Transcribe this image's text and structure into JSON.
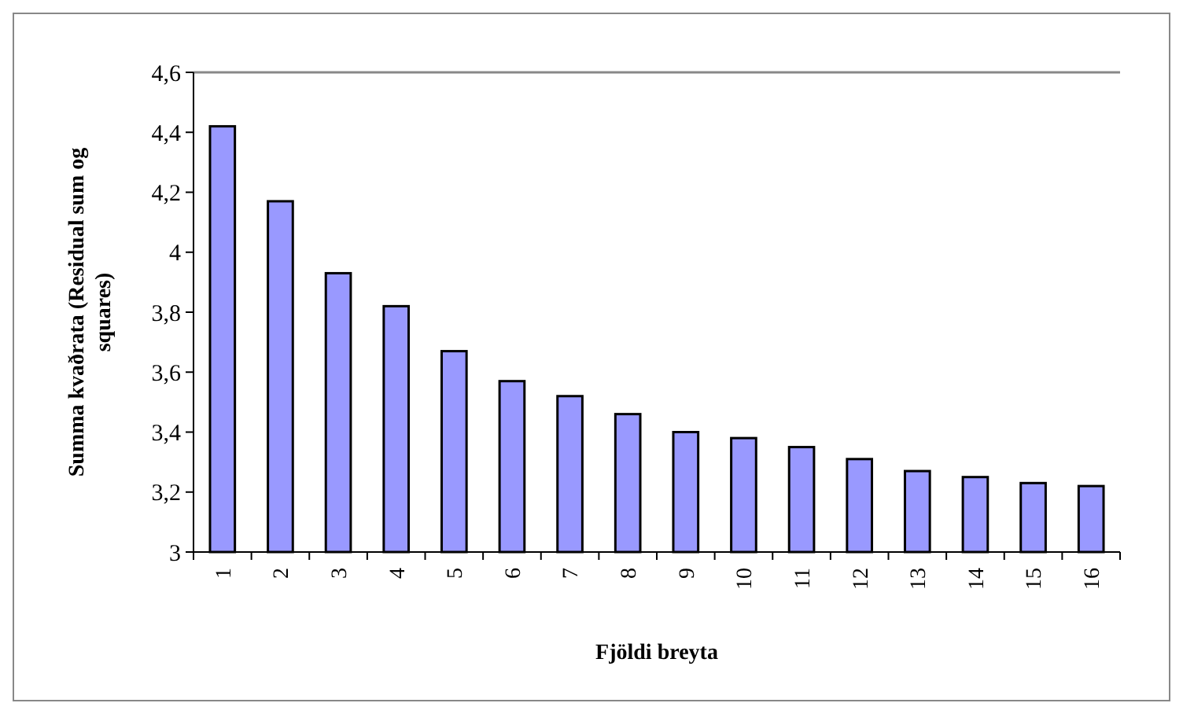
{
  "chart_data": {
    "type": "bar",
    "xlabel": "Fjöldi breyta",
    "ylabel": "Summa kvaðrata (Residual sum og squares)",
    "categories": [
      "1",
      "2",
      "3",
      "4",
      "5",
      "6",
      "7",
      "8",
      "9",
      "10",
      "11",
      "12",
      "13",
      "14",
      "15",
      "16"
    ],
    "values": [
      4.42,
      4.17,
      3.93,
      3.82,
      3.67,
      3.57,
      3.52,
      3.46,
      3.4,
      3.38,
      3.35,
      3.31,
      3.27,
      3.25,
      3.23,
      3.22
    ],
    "color": "#9999ff",
    "ylim": [
      3,
      4.6
    ],
    "yticks": [
      {
        "value": 3,
        "label": "3"
      },
      {
        "value": 3.2,
        "label": "3,2"
      },
      {
        "value": 3.4,
        "label": "3,4"
      },
      {
        "value": 3.6,
        "label": "3,6"
      },
      {
        "value": 3.8,
        "label": "3,8"
      },
      {
        "value": 4,
        "label": "4"
      },
      {
        "value": 4.2,
        "label": "4,2"
      },
      {
        "value": 4.4,
        "label": "4,4"
      },
      {
        "value": 4.6,
        "label": "4,6"
      }
    ],
    "grid": false
  }
}
